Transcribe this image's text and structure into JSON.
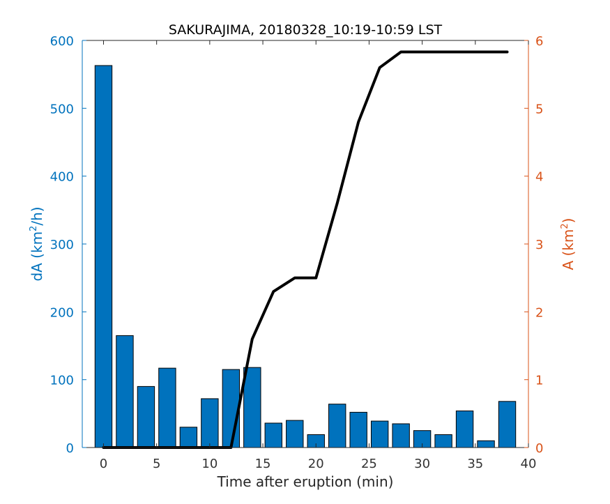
{
  "chart_data": {
    "type": "bar",
    "title": "SAKURAJIMA, 20180328_10:19-10:59 LST",
    "xlabel": "Time after eruption (min)",
    "ylabel_left": {
      "prefix": "dA (km",
      "sup": "2",
      "suffix": "/h)"
    },
    "ylabel_right": {
      "prefix": "A (km",
      "sup": "2",
      "suffix": ")"
    },
    "xlim": [
      -2,
      40
    ],
    "ylim_left": [
      0,
      600
    ],
    "ylim_right": [
      0,
      6
    ],
    "xticks": [
      0,
      5,
      10,
      15,
      20,
      25,
      30,
      35,
      40
    ],
    "yticks_left": [
      0,
      100,
      200,
      300,
      400,
      500,
      600
    ],
    "yticks_right": [
      0,
      1,
      2,
      3,
      4,
      5,
      6
    ],
    "bar_series": {
      "axis": "left",
      "color": "#0072BD",
      "x": [
        0,
        2,
        4,
        6,
        8,
        10,
        12,
        14,
        16,
        18,
        20,
        22,
        24,
        26,
        28,
        30,
        32,
        34,
        36,
        38
      ],
      "values": [
        563,
        165,
        90,
        117,
        30,
        72,
        115,
        118,
        36,
        40,
        19,
        64,
        52,
        39,
        35,
        25,
        19,
        54,
        10,
        68
      ]
    },
    "line_series": {
      "axis": "right",
      "color": "#000000",
      "x": [
        0,
        12,
        14,
        16,
        18,
        20,
        22,
        24,
        26,
        28,
        30,
        32,
        34,
        36,
        38
      ],
      "values": [
        0,
        0,
        1.6,
        2.3,
        2.5,
        2.5,
        3.6,
        4.8,
        5.6,
        5.83,
        5.83,
        5.83,
        5.83,
        5.83,
        5.83
      ]
    },
    "colors": {
      "left_axis": "#0072BD",
      "right_axis": "#D95319",
      "line": "#000000"
    },
    "grid": false,
    "legend": "none"
  }
}
